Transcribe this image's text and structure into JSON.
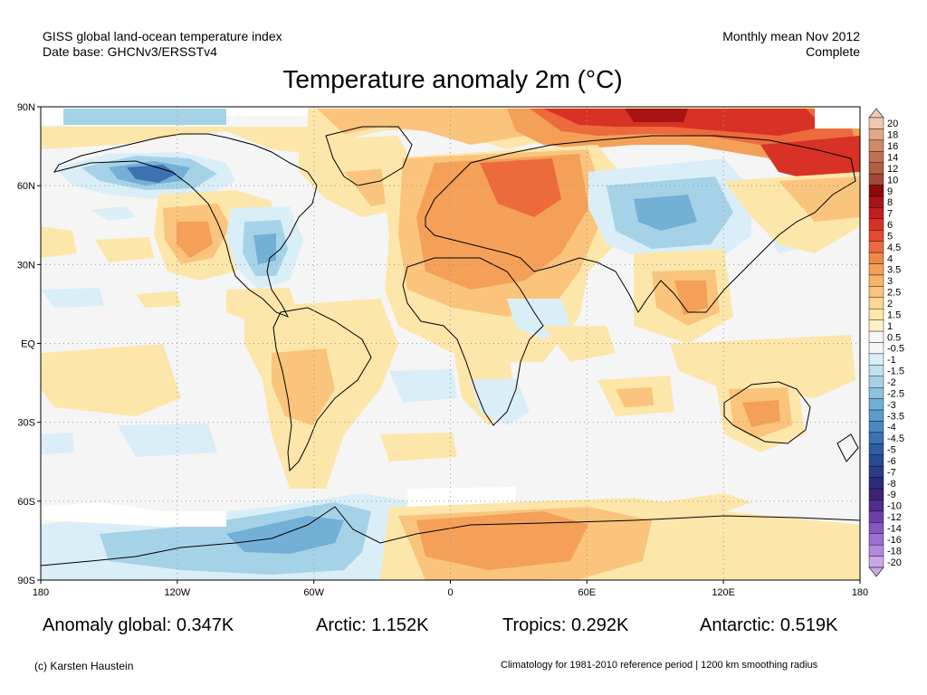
{
  "header": {
    "dataset_line1": "GISS global land-ocean temperature index",
    "dataset_line2": "Date base: GHCNv3/ERSSTv4",
    "period_line1": "Monthly mean Nov 2012",
    "period_line2": "Complete"
  },
  "title": "Temperature anomaly 2m (°C)",
  "axes": {
    "lat_labels": [
      "90N",
      "60N",
      "30N",
      "EQ",
      "30S",
      "60S",
      "90S"
    ],
    "lon_labels": [
      "180",
      "120W",
      "60W",
      "0",
      "60E",
      "120E",
      "180"
    ]
  },
  "colorbar": {
    "labels": [
      "20",
      "18",
      "16",
      "14",
      "12",
      "10",
      "9",
      "8",
      "7",
      "6",
      "5",
      "4.5",
      "4",
      "3.5",
      "3",
      "2.5",
      "2",
      "1.5",
      "1",
      "0.5",
      "-0.5",
      "-1",
      "-1.5",
      "-2",
      "-2.5",
      "-3",
      "-3.5",
      "-4",
      "-4.5",
      "-5",
      "-6",
      "-7",
      "-8",
      "-9",
      "-10",
      "-12",
      "-14",
      "-16",
      "-18",
      "-20"
    ],
    "colors": [
      "#f0c8b0",
      "#e0a888",
      "#d08868",
      "#c07050",
      "#b06040",
      "#a04838",
      "#8c0a0a",
      "#a81414",
      "#c41e1e",
      "#d83226",
      "#e44a32",
      "#ec6a3c",
      "#f08848",
      "#f4a058",
      "#f8b468",
      "#fac47c",
      "#fcd692",
      "#fde6aa",
      "#fef0c4",
      "#f5f5f5",
      "#f5f5f5",
      "#daeef8",
      "#c0e2f0",
      "#a6d2e8",
      "#8cc2e0",
      "#72b0d6",
      "#5a9ccc",
      "#4a88c0",
      "#3c72b0",
      "#2e5ca0",
      "#284a94",
      "#283c88",
      "#2c2c7c",
      "#3c2474",
      "#502c8c",
      "#6a40a8",
      "#8458c0",
      "#9c70d0",
      "#b488dc",
      "#c8a8e8"
    ]
  },
  "stats": {
    "global": "Anomaly global: 0.347K",
    "arctic": "Arctic: 1.152K",
    "tropics": "Tropics: 0.292K",
    "antarctic": "Antarctic: 0.519K"
  },
  "footer": {
    "credit": "(c) Karsten Haustein",
    "note": "Climatology for 1981-2010 reference period | 1200 km smoothing radius"
  },
  "map_colors": {
    "background": "#f5f5f5",
    "missing": "#ffffff",
    "warm_light": "#fde6aa",
    "warm_mid": "#fac47c",
    "warm_orange": "#f4a058",
    "warm_strong": "#ec6a3c",
    "warm_red": "#d83226",
    "warm_dark": "#a81414",
    "cool_light": "#daeef8",
    "cool_mid": "#a6d2e8",
    "cool_strong": "#72b0d6",
    "cool_dark": "#3c72b0"
  }
}
